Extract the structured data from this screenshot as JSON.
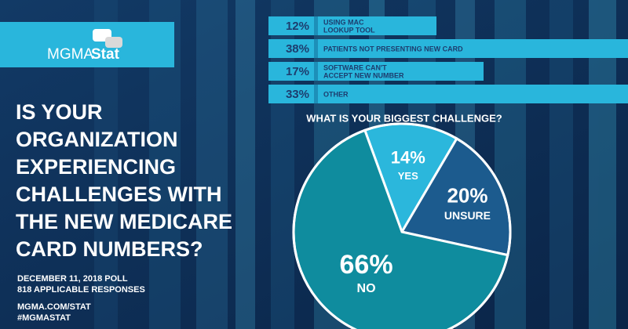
{
  "logo": {
    "brand": "MGMA",
    "product": "Stat"
  },
  "headline": [
    "IS YOUR",
    "ORGANIZATION",
    "EXPERIENCING",
    "CHALLENGES WITH",
    "THE NEW MEDICARE",
    "CARD NUMBERS?"
  ],
  "footer": {
    "poll": "DECEMBER 11, 2018 POLL",
    "responses": "818 APPLICABLE RESPONSES",
    "url": "MGMA.COM/STAT",
    "hashtag": "#MGMASTAT"
  },
  "chart_data": [
    {
      "type": "bar",
      "title": "WHAT IS YOUR BIGGEST CHALLENGE?",
      "categories": [
        [
          "USING MAC",
          "LOOKUP TOOL"
        ],
        [
          "PATIENTS NOT PRESENTING NEW CARD"
        ],
        [
          "SOFTWARE CAN'T",
          "ACCEPT NEW NUMBER"
        ],
        [
          "OTHER"
        ]
      ],
      "values": [
        12,
        38,
        17,
        33
      ],
      "value_labels": [
        "12%",
        "38%",
        "17%",
        "33%"
      ],
      "color": "#29b6dc"
    },
    {
      "type": "pie",
      "categories": [
        "YES",
        "UNSURE",
        "NO"
      ],
      "values": [
        14,
        20,
        66
      ],
      "value_labels": [
        "14%",
        "20%",
        "66%"
      ],
      "colors": [
        "#2bb7dc",
        "#1c5b8e",
        "#0f8c9e"
      ]
    }
  ]
}
